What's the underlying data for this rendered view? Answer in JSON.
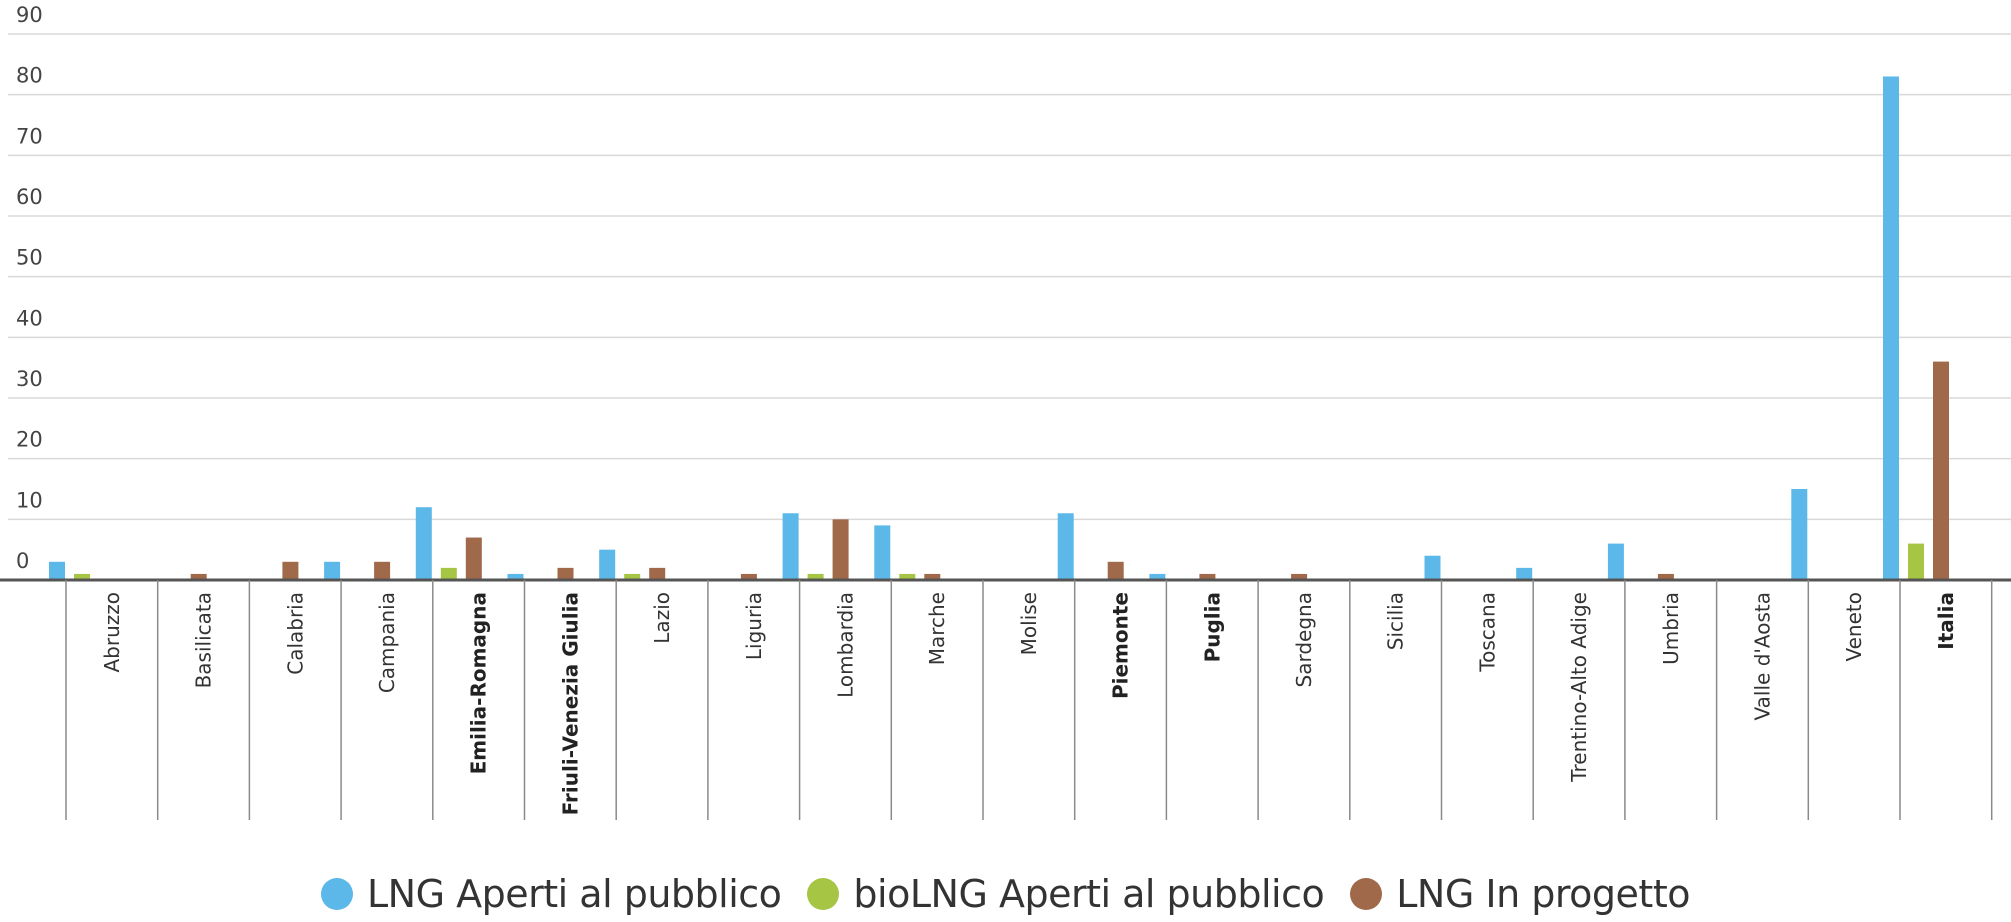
{
  "chart_data": {
    "type": "bar",
    "title": "",
    "xlabel": "",
    "ylabel": "",
    "ylim": [
      0,
      90
    ],
    "yticks": [
      0,
      10,
      20,
      30,
      40,
      50,
      60,
      70,
      80,
      90
    ],
    "grid": true,
    "legend_position": "bottom-center",
    "categories": [
      "Abruzzo",
      "Basilicata",
      "Calabria",
      "Campania",
      "Emilia-Romagna",
      "Friuli-Venezia Giulia",
      "Lazio",
      "Liguria",
      "Lombardia",
      "Marche",
      "Molise",
      "Piemonte",
      "Puglia",
      "Sardegna",
      "Sicilia",
      "Toscana",
      "Trentino-Alto Adige",
      "Umbria",
      "Valle d'Aosta",
      "Veneto",
      "Italia"
    ],
    "bold_categories": [
      "Emilia-Romagna",
      "Friuli-Venezia Giulia",
      "Piemonte",
      "Puglia",
      "Italia"
    ],
    "series": [
      {
        "name": "LNG Aperti al pubblico",
        "color": "#5bb8e8",
        "values": [
          3,
          0,
          0,
          3,
          12,
          1,
          5,
          0,
          11,
          9,
          0,
          11,
          1,
          0,
          0,
          4,
          2,
          6,
          0,
          15,
          83
        ]
      },
      {
        "name": "bioLNG Aperti al pubblico",
        "color": "#a6c544",
        "values": [
          1,
          0,
          0,
          0,
          2,
          0,
          1,
          0,
          1,
          1,
          0,
          0,
          0,
          0,
          0,
          0,
          0,
          0,
          0,
          0,
          6
        ]
      },
      {
        "name": "LNG In progetto",
        "color": "#a0694a",
        "values": [
          0,
          1,
          3,
          3,
          7,
          2,
          2,
          1,
          10,
          1,
          0,
          3,
          1,
          1,
          0,
          0,
          0,
          1,
          0,
          0,
          36
        ]
      }
    ]
  }
}
